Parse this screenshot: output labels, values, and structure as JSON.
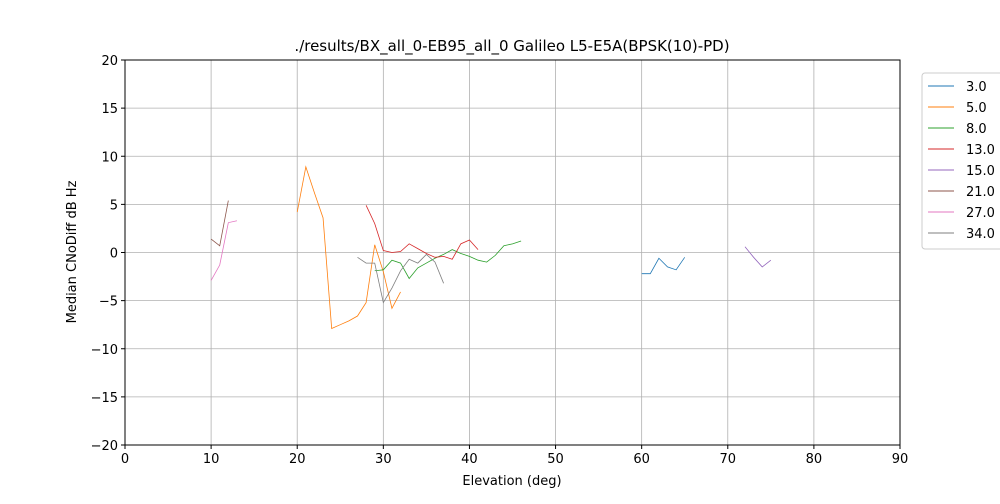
{
  "chart_data": {
    "type": "line",
    "title": "./results/BX_all_0-EB95_all_0 Galileo L5-E5A(BPSK(10)-PD)",
    "x_label": "Elevation (deg)",
    "y_label": "Median CNoDiff dB Hz",
    "xlim": [
      0,
      90
    ],
    "ylim": [
      -20,
      20
    ],
    "xticks": [
      0,
      10,
      20,
      30,
      40,
      50,
      60,
      70,
      80,
      90
    ],
    "yticks": [
      {
        "value": -20,
        "label": "−20"
      },
      {
        "value": -15,
        "label": "−15"
      },
      {
        "value": -10,
        "label": "−10"
      },
      {
        "value": -5,
        "label": "−5"
      },
      0,
      5,
      10,
      15,
      20
    ],
    "grid": true,
    "legend": "outside right",
    "series": [
      {
        "name": "3.0",
        "color": "#1f77b4",
        "x": [
          60,
          61,
          62,
          63,
          64,
          65
        ],
        "values": [
          -2.2,
          -2.2,
          -0.6,
          -1.5,
          -1.8,
          -0.5
        ]
      },
      {
        "name": "5.0",
        "color": "#ff7f0e",
        "x": [
          20,
          21,
          22,
          23,
          24,
          25,
          26,
          27,
          28,
          29,
          30,
          31,
          32
        ],
        "values": [
          4.2,
          8.9,
          6.2,
          3.6,
          -7.9,
          -7.5,
          -7.1,
          -6.6,
          -5.2,
          0.8,
          -2.0,
          -5.8,
          -4.1
        ]
      },
      {
        "name": "8.0",
        "color": "#2ca02c",
        "x": [
          29,
          30,
          31,
          32,
          33,
          34,
          35,
          36,
          37,
          38,
          39,
          40,
          41,
          42,
          43,
          44,
          45,
          46
        ],
        "values": [
          -1.9,
          -1.8,
          -0.8,
          -1.1,
          -2.7,
          -1.6,
          -1.1,
          -0.6,
          -0.2,
          0.3,
          -0.1,
          -0.4,
          -0.8,
          -1.0,
          -0.3,
          0.7,
          0.9,
          1.2
        ]
      },
      {
        "name": "13.0",
        "color": "#d62728",
        "x": [
          28,
          29,
          30,
          31,
          32,
          33,
          34,
          35,
          36,
          37,
          38,
          39,
          40,
          41
        ],
        "values": [
          4.9,
          3.0,
          0.2,
          0.0,
          0.1,
          0.9,
          0.4,
          -0.1,
          -0.5,
          -0.4,
          -0.7,
          0.9,
          1.3,
          0.3
        ]
      },
      {
        "name": "15.0",
        "color": "#9467bd",
        "x": [
          72,
          73,
          74,
          75
        ],
        "values": [
          0.6,
          -0.5,
          -1.5,
          -0.8
        ]
      },
      {
        "name": "21.0",
        "color": "#8c564b",
        "x": [
          10,
          11,
          12
        ],
        "values": [
          1.4,
          0.7,
          5.4
        ]
      },
      {
        "name": "27.0",
        "color": "#e377c2",
        "x": [
          10,
          11,
          12,
          13
        ],
        "values": [
          -2.9,
          -1.3,
          3.1,
          3.3
        ]
      },
      {
        "name": "34.0",
        "color": "#7f7f7f",
        "x": [
          27,
          28,
          29,
          30,
          31,
          32,
          33,
          34,
          35,
          36,
          37
        ],
        "values": [
          -0.5,
          -1.1,
          -1.1,
          -5.2,
          -3.7,
          -1.9,
          -0.7,
          -1.1,
          -0.2,
          -1.0,
          -3.2
        ]
      }
    ]
  }
}
